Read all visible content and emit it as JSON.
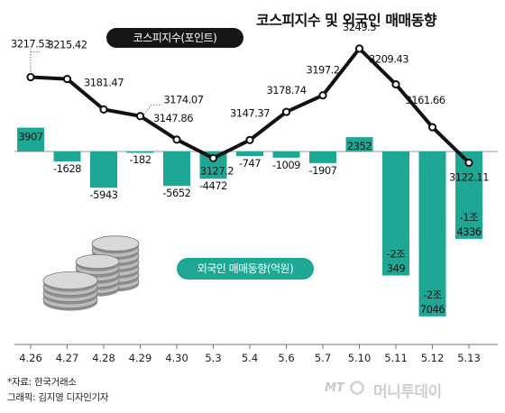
{
  "title": "코스피지수 및 외국인 매매동향",
  "legend_kospi": "코스피지수(포인트)",
  "legend_foreign": "외국인 매매동향(억원)",
  "source": "*자료: 한국거래소",
  "credit": "그래픽: 김지영 디자인기자",
  "brand_mt": "MT",
  "brand_name": "머니투데이",
  "colors": {
    "line": "#111111",
    "bar": "#1fa796",
    "legend_dark": "#151515"
  },
  "chart_data": {
    "type": "bar+line",
    "categories": [
      "4.26",
      "4.27",
      "4.28",
      "4.29",
      "4.30",
      "5.3",
      "5.4",
      "5.6",
      "5.7",
      "5.10",
      "5.11",
      "5.12",
      "5.13"
    ],
    "series": [
      {
        "name": "코스피지수(포인트)",
        "type": "line",
        "values": [
          3217.53,
          3215.42,
          3181.47,
          3174.07,
          3147.86,
          3127.2,
          3147.37,
          3178.74,
          3197.2,
          3249.3,
          3209.43,
          3161.66,
          3122.11
        ],
        "labels": [
          "3217.53",
          "3215.42",
          "3181.47",
          "3174.07",
          "3147.86",
          "3127.2",
          "3147.37",
          "3178.74",
          "3197.2",
          "3249.3",
          "3209.43",
          "3161.66",
          "3122.11"
        ]
      },
      {
        "name": "외국인 매매동향(억원)",
        "type": "bar",
        "values": [
          3907,
          -1628,
          -5943,
          -182,
          -5652,
          -4472,
          -747,
          -1009,
          -1907,
          2352,
          -20349,
          -27046,
          -14336
        ],
        "labels": [
          "3907",
          "-1628",
          "-5943",
          "-182",
          "-5652",
          "-4472",
          "-747",
          "-1009",
          "-1907",
          "2352",
          "-2조\n349",
          "-2조\n7046",
          "-1조\n4336"
        ]
      }
    ]
  }
}
